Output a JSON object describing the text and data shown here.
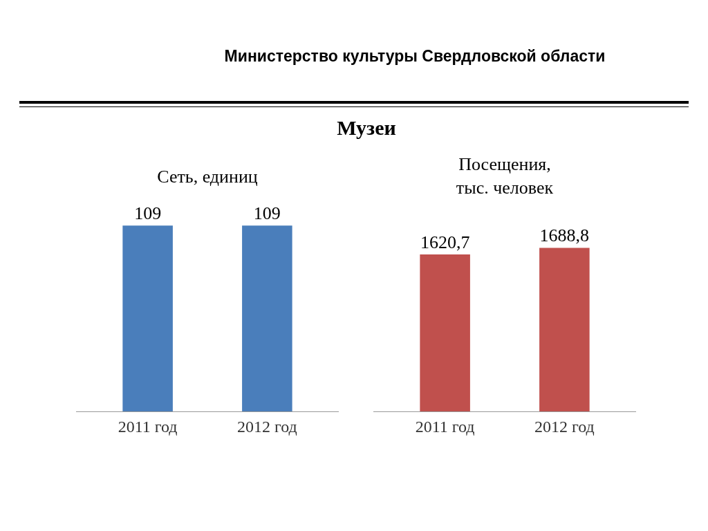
{
  "chart_data": [
    {
      "type": "other",
      "title": "Министерство культуры Свердловской области",
      "subtitle": "Музеи"
    },
    {
      "type": "bar",
      "title": "Сеть, единиц",
      "categories": [
        "2011 год",
        "2012 год"
      ],
      "values": [
        109,
        109
      ],
      "value_labels": [
        "109",
        "109"
      ],
      "color": "#4a7ebb"
    },
    {
      "type": "bar",
      "title": "Посещения,\nтыс. человек",
      "categories": [
        "2011 год",
        "2012 год"
      ],
      "values": [
        1620.7,
        1688.8
      ],
      "value_labels": [
        "1620,7",
        "1688,8"
      ],
      "color": "#c0504d"
    }
  ]
}
